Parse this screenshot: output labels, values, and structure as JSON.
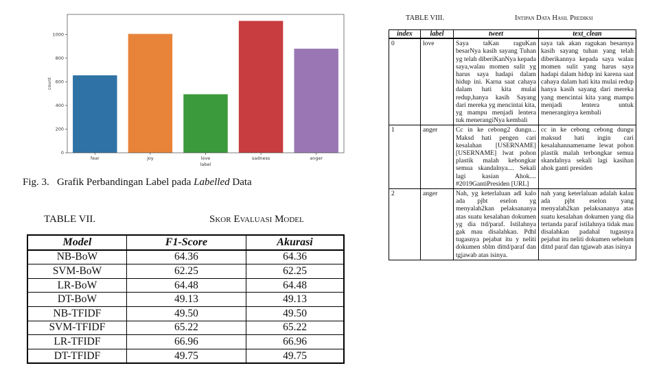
{
  "chart_data": {
    "type": "bar",
    "categories": [
      "fear",
      "joy",
      "love",
      "sadness",
      "anger"
    ],
    "values": [
      655,
      1005,
      495,
      1115,
      880
    ],
    "colors": [
      "#2f73a6",
      "#e8833a",
      "#3b9a3b",
      "#c83d3f",
      "#9a77b4"
    ],
    "xlabel": "label",
    "ylabel": "count",
    "yticks": [
      0,
      200,
      400,
      600,
      800,
      1000
    ],
    "ylim": [
      0,
      1170
    ],
    "grid": false
  },
  "figure": {
    "caption_prefix": "Fig. 3.",
    "caption_main": "Grafik Perbandingan Label pada",
    "caption_italic": "Labelled",
    "caption_end": "Data"
  },
  "table7": {
    "number": "TABLE VII.",
    "name": "Skor Evaluasi Model",
    "headers": [
      "Model",
      "F1-Score",
      "Akurasi"
    ],
    "rows": [
      [
        "NB-BoW",
        "64.36",
        "64.36"
      ],
      [
        "SVM-BoW",
        "62.25",
        "62.25"
      ],
      [
        "LR-BoW",
        "64.48",
        "64.48"
      ],
      [
        "DT-BoW",
        "49.13",
        "49.13"
      ],
      [
        "NB-TFIDF",
        "49.50",
        "49.50"
      ],
      [
        "SVM-TFIDF",
        "65.22",
        "65.22"
      ],
      [
        "LR-TFIDF",
        "66.96",
        "66.96"
      ],
      [
        "DT-TFIDF",
        "49.75",
        "49.75"
      ]
    ]
  },
  "table8": {
    "number": "TABLE VIII.",
    "name": "Intipan Data Hasil Prediksi",
    "headers": [
      "index",
      "label",
      "tweet",
      "text_clean"
    ],
    "rows": [
      {
        "index": "0",
        "label": "love",
        "tweet": "Saya taKan raguKan besarNya kasih sayang Tuhan yg telah diberiKanNya kepada saya,walau momen sulit yg harus saya hadapi dalam hidup ini. Karna saat cahaya dalam hati kita mulai redup,hanya kasih Sayang dari mereka yg mencintai kita, yg mampu menjadi lentera tuk menerangiNya kembali",
        "text_clean": "saya tak akan ragukan besarnya kasih sayang tuhan yang telah diberikannya kepada saya walau momen sulit yang harus saya hadapi dalam hidup ini karena saat cahaya dalam hati kita mulai redup hanya kasih sayang dari mereka yang mencintai kita yang mampu menjadi lentera untuk meneranginya kembali"
      },
      {
        "index": "1",
        "label": "anger",
        "tweet": "Cc in ke cebong2 dungu... Maksd hati pengen cari kesalahan [USERNAME] [USERNAME] lwat pohon plastik malah kebongkar semua skandalnya.... Sekali lagi kasian Ahok.... #2019GantiPresiden [URL]",
        "text_clean": "cc in ke cebong cebong dungu maksud hati ingin cari kesalahannamename lewat pohon plastik malah terbongkar semua skandalnya sekali lagi kasihan ahok ganti presiden"
      },
      {
        "index": "2",
        "label": "anger",
        "tweet": "Nah, yg keterlaluan adl kalo ada pjbt eselon yg menyalah2kan pelaksananya atas suatu kesalahan dokumen yg dia ttd/paraf. Istilahnya gak mau disalahkan. Pdhl tugasnya pejabat itu y neliti dokumen sblm dittd/paraf dan tgjawab atas isinya.",
        "text_clean": "nah yang keterlaluan adalah kalau ada pjbt eselon yang menyalah2kan pelaksananya atas suatu kesalahan dokumen yang dia tertanda paraf istilahnya tidak mau disalahkan padahal tugasnya pejabat itu neliti dokumen sebelum dittd paraf dan tgjawab atas isinya"
      }
    ]
  }
}
